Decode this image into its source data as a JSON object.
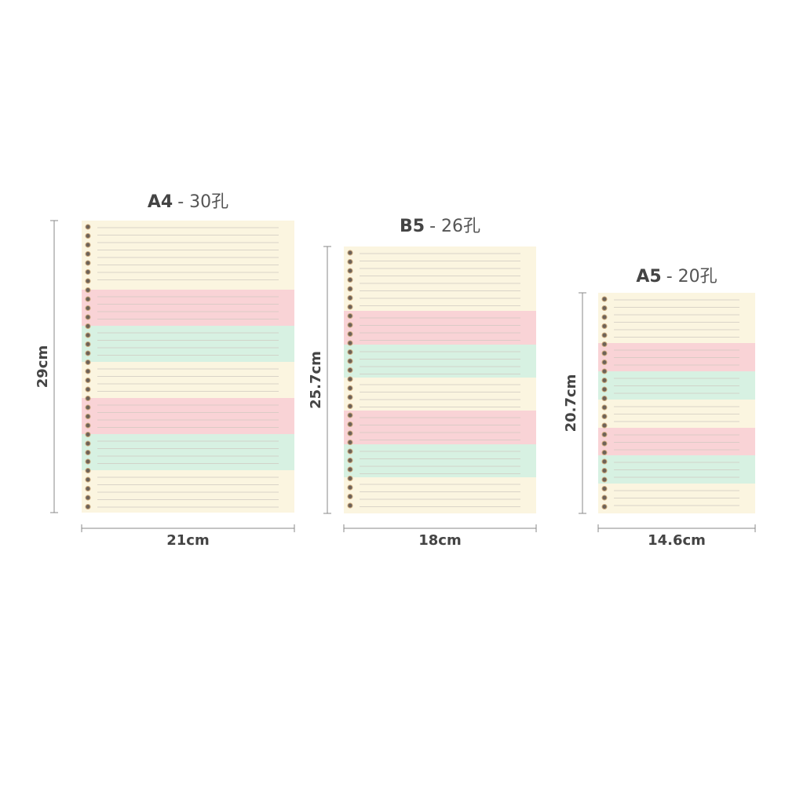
{
  "papers": [
    {
      "title_bold": "A4",
      "title_rest": "- 30孔",
      "height": "29cm",
      "width": "21cm"
    },
    {
      "title_bold": "B5",
      "title_rest": "- 26孔",
      "height": "25.7cm",
      "width": "18cm"
    },
    {
      "title_bold": "A5",
      "title_rest": "- 20孔",
      "height": "20.7cm",
      "width": "14.6cm"
    }
  ]
}
